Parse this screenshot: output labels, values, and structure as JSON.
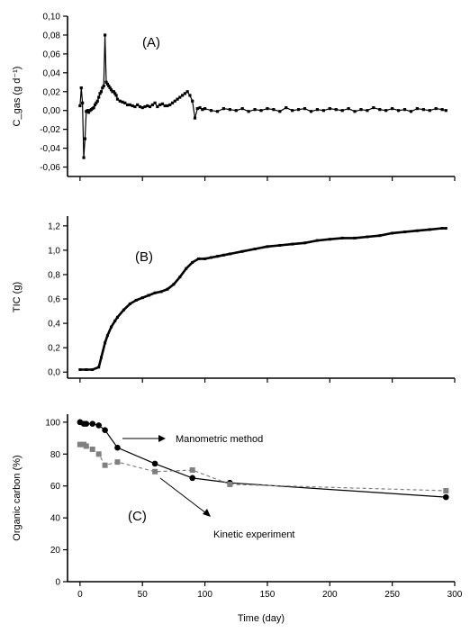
{
  "chart_data": [
    {
      "type": "line",
      "panel_label": "(A)",
      "ylabel": "C_gas (g d⁻¹)",
      "ylim": [
        -0.07,
        0.1
      ],
      "yticks": [
        -0.06,
        -0.04,
        -0.02,
        0.0,
        0.02,
        0.04,
        0.06,
        0.08,
        0.1
      ],
      "ytick_labels": [
        "-0,06",
        "-0,04",
        "-0,02",
        "0,00",
        "0,02",
        "0,04",
        "0,06",
        "0,08",
        "0,10"
      ],
      "xlim": [
        -10,
        300
      ],
      "color": "#000000",
      "series": [
        {
          "x": [
            0,
            1,
            2,
            3,
            4,
            5,
            6,
            7,
            8,
            9,
            10,
            11,
            12,
            13,
            14,
            15,
            16,
            17,
            18,
            19,
            20,
            21,
            22,
            23,
            24,
            25,
            26,
            27,
            28,
            29,
            30,
            32,
            34,
            36,
            38,
            40,
            42,
            44,
            46,
            48,
            50,
            52,
            54,
            56,
            58,
            60,
            62,
            64,
            66,
            68,
            70,
            72,
            74,
            76,
            78,
            80,
            82,
            84,
            86,
            88,
            90,
            92,
            94,
            96,
            98,
            100,
            105,
            110,
            115,
            120,
            125,
            130,
            135,
            140,
            145,
            150,
            155,
            160,
            165,
            170,
            175,
            180,
            185,
            190,
            195,
            200,
            205,
            210,
            215,
            220,
            225,
            230,
            235,
            240,
            245,
            250,
            255,
            260,
            265,
            270,
            275,
            280,
            285,
            290,
            293
          ],
          "y": [
            0.005,
            0.024,
            0.008,
            -0.05,
            -0.03,
            -0.001,
            0.0,
            -0.002,
            0.0,
            0.001,
            0.002,
            0.003,
            0.006,
            0.008,
            0.01,
            0.014,
            0.018,
            0.02,
            0.024,
            0.026,
            0.08,
            0.03,
            0.028,
            0.026,
            0.024,
            0.022,
            0.02,
            0.02,
            0.018,
            0.016,
            0.012,
            0.01,
            0.009,
            0.008,
            0.006,
            0.006,
            0.005,
            0.004,
            0.006,
            0.004,
            0.003,
            0.004,
            0.005,
            0.004,
            0.006,
            0.008,
            0.004,
            0.006,
            0.007,
            0.005,
            0.005,
            0.006,
            0.008,
            0.01,
            0.012,
            0.014,
            0.016,
            0.018,
            0.02,
            0.016,
            0.01,
            -0.008,
            0.002,
            0.003,
            0.001,
            0.002,
            0.0,
            -0.001,
            0.002,
            0.001,
            0.0,
            0.002,
            -0.001,
            0.001,
            0.0,
            0.002,
            0.001,
            -0.001,
            0.003,
            0.0,
            0.001,
            0.002,
            -0.001,
            0.001,
            0.0,
            0.002,
            0.001,
            0.0,
            0.002,
            -0.001,
            0.001,
            0.0,
            0.003,
            0.001,
            0.0,
            0.002,
            0.0,
            0.001,
            -0.001,
            0.002,
            0.001,
            0.0,
            0.002,
            0.001,
            0.0
          ]
        }
      ]
    },
    {
      "type": "line",
      "panel_label": "(B)",
      "ylabel": "TIC (g)",
      "ylim": [
        -0.05,
        1.28
      ],
      "yticks": [
        0.0,
        0.2,
        0.4,
        0.6,
        0.8,
        1.0,
        1.2
      ],
      "ytick_labels": [
        "0,0",
        "0,2",
        "0,4",
        "0,6",
        "0,8",
        "1,0",
        "1,2"
      ],
      "xlim": [
        -10,
        300
      ],
      "color": "#000000",
      "series": [
        {
          "x": [
            0,
            5,
            10,
            15,
            17,
            20,
            22,
            25,
            28,
            30,
            35,
            40,
            45,
            50,
            55,
            60,
            65,
            70,
            75,
            80,
            85,
            90,
            95,
            100,
            105,
            110,
            115,
            120,
            130,
            140,
            150,
            160,
            170,
            180,
            190,
            200,
            210,
            220,
            230,
            240,
            250,
            260,
            270,
            280,
            290,
            293
          ],
          "y": [
            0.02,
            0.02,
            0.02,
            0.04,
            0.12,
            0.24,
            0.3,
            0.37,
            0.42,
            0.45,
            0.51,
            0.56,
            0.59,
            0.61,
            0.63,
            0.65,
            0.66,
            0.68,
            0.72,
            0.78,
            0.85,
            0.9,
            0.93,
            0.93,
            0.94,
            0.95,
            0.96,
            0.97,
            0.99,
            1.01,
            1.03,
            1.04,
            1.05,
            1.06,
            1.08,
            1.09,
            1.1,
            1.1,
            1.11,
            1.12,
            1.14,
            1.15,
            1.16,
            1.17,
            1.18,
            1.18
          ]
        }
      ]
    },
    {
      "type": "line",
      "panel_label": "(C)",
      "ylabel": "Organic carbon (%)",
      "xlabel": "Time (day)",
      "ylim": [
        0,
        105
      ],
      "yticks": [
        0,
        20,
        40,
        60,
        80,
        100
      ],
      "ytick_labels": [
        "0",
        "20",
        "40",
        "60",
        "80",
        "100"
      ],
      "xlim": [
        -10,
        300
      ],
      "xticks": [
        0,
        50,
        100,
        150,
        200,
        250,
        300
      ],
      "xtick_labels": [
        "0",
        "50",
        "100",
        "150",
        "200",
        "250",
        "300"
      ],
      "series": [
        {
          "name": "Manometric method",
          "color": "#000000",
          "marker": "circle",
          "dashed": false,
          "x": [
            0,
            3,
            5,
            10,
            15,
            20,
            30,
            60,
            90,
            120,
            293
          ],
          "y": [
            100,
            99,
            99,
            99,
            98,
            95,
            84,
            74,
            65,
            62,
            53
          ]
        },
        {
          "name": "Kinetic experiment",
          "color": "#808080",
          "marker": "square",
          "dashed": true,
          "x": [
            0,
            3,
            5,
            10,
            15,
            20,
            30,
            60,
            90,
            120,
            293
          ],
          "y": [
            86,
            86,
            85,
            83,
            80,
            73,
            75,
            69,
            70,
            61,
            57
          ]
        }
      ],
      "annotations": [
        "Manometric method",
        "Kinetic experiment"
      ]
    }
  ]
}
